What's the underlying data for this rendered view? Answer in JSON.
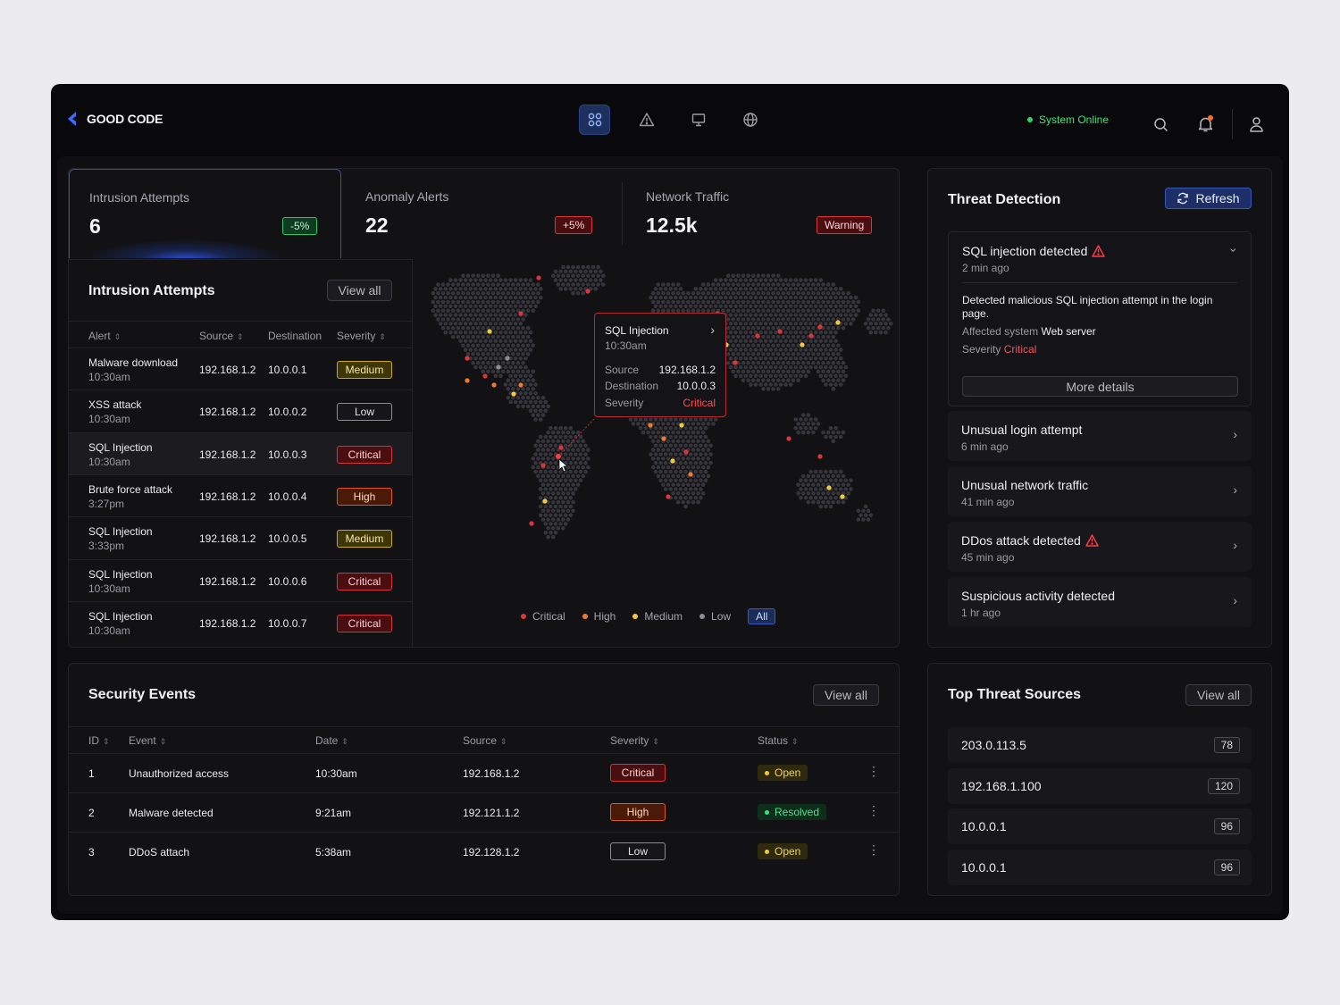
{
  "brand": {
    "name": "GOOD CODE"
  },
  "nav": {
    "icons": [
      "grid-icon",
      "alert-triangle-icon",
      "monitor-icon",
      "globe-icon"
    ],
    "active": "grid-icon"
  },
  "header": {
    "status": "System Online"
  },
  "stats": [
    {
      "label": "Intrusion Attempts",
      "value": "6",
      "badge": "-5%",
      "tone": "green"
    },
    {
      "label": "Anomaly Alerts",
      "value": "22",
      "badge": "+5%",
      "tone": "red"
    },
    {
      "label": "Network Traffic",
      "value": "12.5k",
      "badge": "Warning",
      "tone": "red"
    }
  ],
  "intrusion": {
    "title": "Intrusion Attempts",
    "view_all": "View all",
    "columns": [
      "Alert",
      "Source",
      "Destination",
      "Severity"
    ],
    "rows": [
      {
        "alert": "Malware download",
        "time": "10:30am",
        "source": "192.168.1.2",
        "destination": "10.0.0.1",
        "severity": "Medium"
      },
      {
        "alert": "XSS attack",
        "time": "10:30am",
        "source": "192.168.1.2",
        "destination": "10.0.0.2",
        "severity": "Low"
      },
      {
        "alert": "SQL Injection",
        "time": "10:30am",
        "source": "192.168.1.2",
        "destination": "10.0.0.3",
        "severity": "Critical"
      },
      {
        "alert": "Brute force attack",
        "time": "3:27pm",
        "source": "192.168.1.2",
        "destination": "10.0.0.4",
        "severity": "High"
      },
      {
        "alert": "SQL Injection",
        "time": "3:33pm",
        "source": "192.168.1.2",
        "destination": "10.0.0.5",
        "severity": "Medium"
      },
      {
        "alert": "SQL Injection",
        "time": "10:30am",
        "source": "192.168.1.2",
        "destination": "10.0.0.6",
        "severity": "Critical"
      },
      {
        "alert": "SQL Injection",
        "time": "10:30am",
        "source": "192.168.1.2",
        "destination": "10.0.0.7",
        "severity": "Critical"
      }
    ]
  },
  "map": {
    "tooltip": {
      "title": "SQL Injection",
      "time": "10:30am",
      "source_label": "Source",
      "source": "192.168.1.2",
      "destination_label": "Destination",
      "destination": "10.0.0.3",
      "severity_label": "Severity",
      "severity": "Critical"
    },
    "legend": [
      "Critical",
      "High",
      "Medium",
      "Low"
    ],
    "filter": "All",
    "colors": {
      "critical": "#e0343c",
      "high": "#f07a2a",
      "medium": "#f2c93a",
      "low": "#8c8c94"
    }
  },
  "threat": {
    "title": "Threat Detection",
    "refresh": "Refresh",
    "expanded": {
      "title": "SQL injection detected",
      "time": "2 min ago",
      "description": "Detected malicious SQL injection attempt in the login page.",
      "system_label": "Affected system",
      "system": "Web server",
      "severity_label": "Severity",
      "severity": "Critical",
      "more": "More details"
    },
    "items": [
      {
        "title": "Unusual login attempt",
        "time": "6 min ago",
        "warn": false
      },
      {
        "title": "Unusual network traffic",
        "time": "41 min ago",
        "warn": false
      },
      {
        "title": "DDos attack detected",
        "time": "45 min ago",
        "warn": true
      },
      {
        "title": "Suspicious activity detected",
        "time": "1 hr ago",
        "warn": false
      }
    ]
  },
  "events": {
    "title": "Security Events",
    "view_all": "View all",
    "columns": [
      "ID",
      "Event",
      "Date",
      "Source",
      "Severity",
      "Status"
    ],
    "rows": [
      {
        "id": "1",
        "event": "Unauthorized access",
        "date": "10:30am",
        "source": "192.168.1.2",
        "severity": "Critical",
        "status": "Open"
      },
      {
        "id": "2",
        "event": "Malware detected",
        "date": "9:21am",
        "source": "192.121.1.2",
        "severity": "High",
        "status": "Resolved"
      },
      {
        "id": "3",
        "event": "DDoS attach",
        "date": "5:38am",
        "source": "192.128.1.2",
        "severity": "Low",
        "status": "Open"
      }
    ]
  },
  "sources": {
    "title": "Top Threat Sources",
    "view_all": "View all",
    "items": [
      {
        "ip": "203.0.113.5",
        "count": "78"
      },
      {
        "ip": "192.168.1.100",
        "count": "120"
      },
      {
        "ip": "10.0.0.1",
        "count": "96"
      },
      {
        "ip": "10.0.0.1",
        "count": "96"
      }
    ]
  }
}
